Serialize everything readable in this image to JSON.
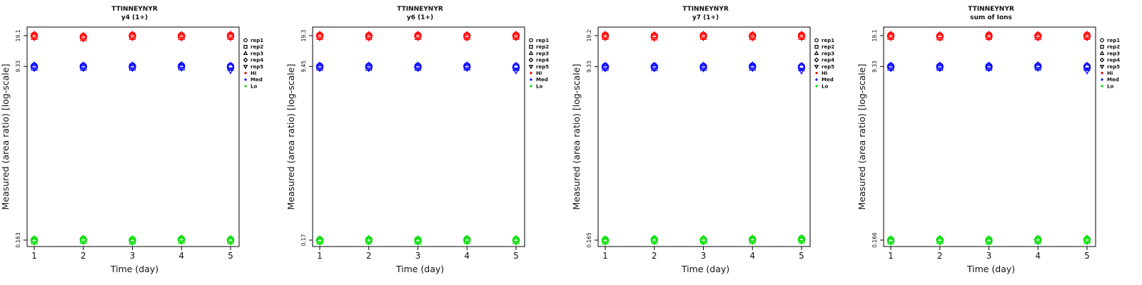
{
  "chart_data": [
    {
      "type": "scatter",
      "title": "TTINNEYNYR",
      "subtitle": "y4 (1+)",
      "xlabel": "Time (day)",
      "ylabel": "Measured (area ratio) [log-scale]",
      "x": [
        1,
        2,
        3,
        4,
        5
      ],
      "yticks": [
        "0.163",
        "9.33",
        "19.1"
      ],
      "ylog": true,
      "legend_position": "right",
      "series": [
        {
          "name": "rep1",
          "shape": "circle"
        },
        {
          "name": "rep2",
          "shape": "square"
        },
        {
          "name": "rep3",
          "shape": "triangle-up"
        },
        {
          "name": "rep4",
          "shape": "diamond"
        },
        {
          "name": "rep5",
          "shape": "triangle-down"
        }
      ],
      "groups": [
        {
          "name": "Hi",
          "color": "#ff0000",
          "values": [
            19.1,
            18.6,
            19.1,
            19.0,
            19.1
          ]
        },
        {
          "name": "Med",
          "color": "#0000ff",
          "values": [
            9.33,
            9.33,
            9.33,
            9.4,
            9.3
          ]
        },
        {
          "name": "Lo",
          "color": "#00dd00",
          "values": [
            0.163,
            0.165,
            0.163,
            0.166,
            0.164
          ]
        }
      ]
    },
    {
      "type": "scatter",
      "title": "TTINNEYNYR",
      "subtitle": "y6 (1+)",
      "xlabel": "Time (day)",
      "ylabel": "Measured (area ratio) [log-scale]",
      "x": [
        1,
        2,
        3,
        4,
        5
      ],
      "yticks": [
        "0.17",
        "9.45",
        "19.3"
      ],
      "ylog": true,
      "legend_position": "right",
      "series": [
        {
          "name": "rep1",
          "shape": "circle"
        },
        {
          "name": "rep2",
          "shape": "square"
        },
        {
          "name": "rep3",
          "shape": "triangle-up"
        },
        {
          "name": "rep4",
          "shape": "diamond"
        },
        {
          "name": "rep5",
          "shape": "triangle-down"
        }
      ],
      "groups": [
        {
          "name": "Hi",
          "color": "#ff0000",
          "values": [
            19.3,
            19.2,
            19.3,
            19.2,
            19.3
          ]
        },
        {
          "name": "Med",
          "color": "#0000ff",
          "values": [
            9.45,
            9.45,
            9.45,
            9.5,
            9.4
          ]
        },
        {
          "name": "Lo",
          "color": "#00dd00",
          "values": [
            0.17,
            0.171,
            0.17,
            0.172,
            0.171
          ]
        }
      ]
    },
    {
      "type": "scatter",
      "title": "TTINNEYNYR",
      "subtitle": "y7 (1+)",
      "xlabel": "Time (day)",
      "ylabel": "Measured (area ratio) [log-scale]",
      "x": [
        1,
        2,
        3,
        4,
        5
      ],
      "yticks": [
        "0.165",
        "9.33",
        "19.2"
      ],
      "ylog": true,
      "legend_position": "right",
      "series": [
        {
          "name": "rep1",
          "shape": "circle"
        },
        {
          "name": "rep2",
          "shape": "square"
        },
        {
          "name": "rep3",
          "shape": "triangle-up"
        },
        {
          "name": "rep4",
          "shape": "diamond"
        },
        {
          "name": "rep5",
          "shape": "triangle-down"
        }
      ],
      "groups": [
        {
          "name": "Hi",
          "color": "#ff0000",
          "values": [
            19.2,
            19.0,
            19.2,
            19.1,
            19.2
          ]
        },
        {
          "name": "Med",
          "color": "#0000ff",
          "values": [
            9.33,
            9.33,
            9.33,
            9.4,
            9.3
          ]
        },
        {
          "name": "Lo",
          "color": "#00dd00",
          "values": [
            0.165,
            0.167,
            0.166,
            0.168,
            0.169
          ]
        }
      ]
    },
    {
      "type": "scatter",
      "title": "TTINNEYNYR",
      "subtitle": "sum of Ions",
      "xlabel": "Time (day)",
      "ylabel": "Measured (area ratio) [log-scale]",
      "x": [
        1,
        2,
        3,
        4,
        5
      ],
      "yticks": [
        "0.166",
        "9.33",
        "19.1"
      ],
      "ylog": true,
      "legend_position": "right",
      "series": [
        {
          "name": "rep1",
          "shape": "circle"
        },
        {
          "name": "rep2",
          "shape": "square"
        },
        {
          "name": "rep3",
          "shape": "triangle-up"
        },
        {
          "name": "rep4",
          "shape": "diamond"
        },
        {
          "name": "rep5",
          "shape": "triangle-down"
        }
      ],
      "groups": [
        {
          "name": "Hi",
          "color": "#ff0000",
          "values": [
            19.1,
            18.9,
            19.1,
            19.0,
            19.1
          ]
        },
        {
          "name": "Med",
          "color": "#0000ff",
          "values": [
            9.33,
            9.33,
            9.33,
            9.4,
            9.3
          ]
        },
        {
          "name": "Lo",
          "color": "#00dd00",
          "values": [
            0.166,
            0.167,
            0.166,
            0.168,
            0.168
          ]
        }
      ]
    }
  ]
}
